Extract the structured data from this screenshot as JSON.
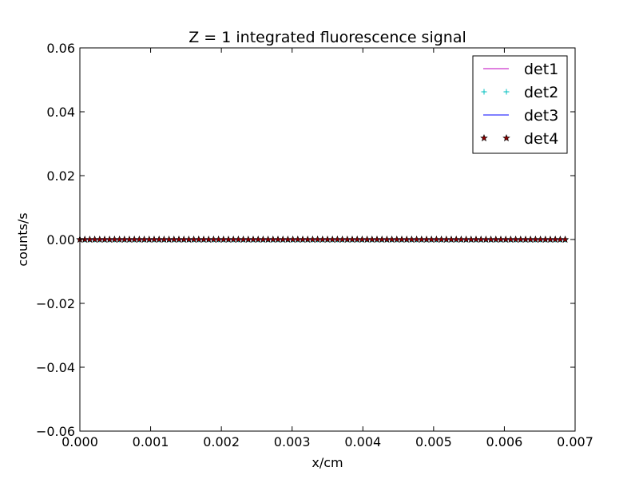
{
  "chart_data": {
    "type": "line",
    "title": "Z = 1 integrated fluorescence signal",
    "xlabel": "x/cm",
    "ylabel": "counts/s",
    "xlim": [
      0.0,
      0.007
    ],
    "ylim": [
      -0.06,
      0.06
    ],
    "xticks": [
      "0.000",
      "0.001",
      "0.002",
      "0.003",
      "0.004",
      "0.005",
      "0.006",
      "0.007"
    ],
    "yticks": [
      "−0.06",
      "−0.04",
      "−0.02",
      "0.00",
      "0.02",
      "0.04",
      "0.06"
    ],
    "grid": false,
    "legend_position": "top-right",
    "x_start": 0.0,
    "x_end": 0.00686,
    "point_count": 99,
    "series": [
      {
        "name": "det1",
        "style": "line",
        "color": "#bf00bf",
        "value": 0.0
      },
      {
        "name": "det2",
        "style": "plus",
        "color": "#00bfbf",
        "value": 0.0
      },
      {
        "name": "det3",
        "style": "line",
        "color": "#0000ff",
        "value": 0.0
      },
      {
        "name": "det4",
        "style": "star",
        "color": "#8b0000",
        "value": 0.0
      }
    ]
  }
}
